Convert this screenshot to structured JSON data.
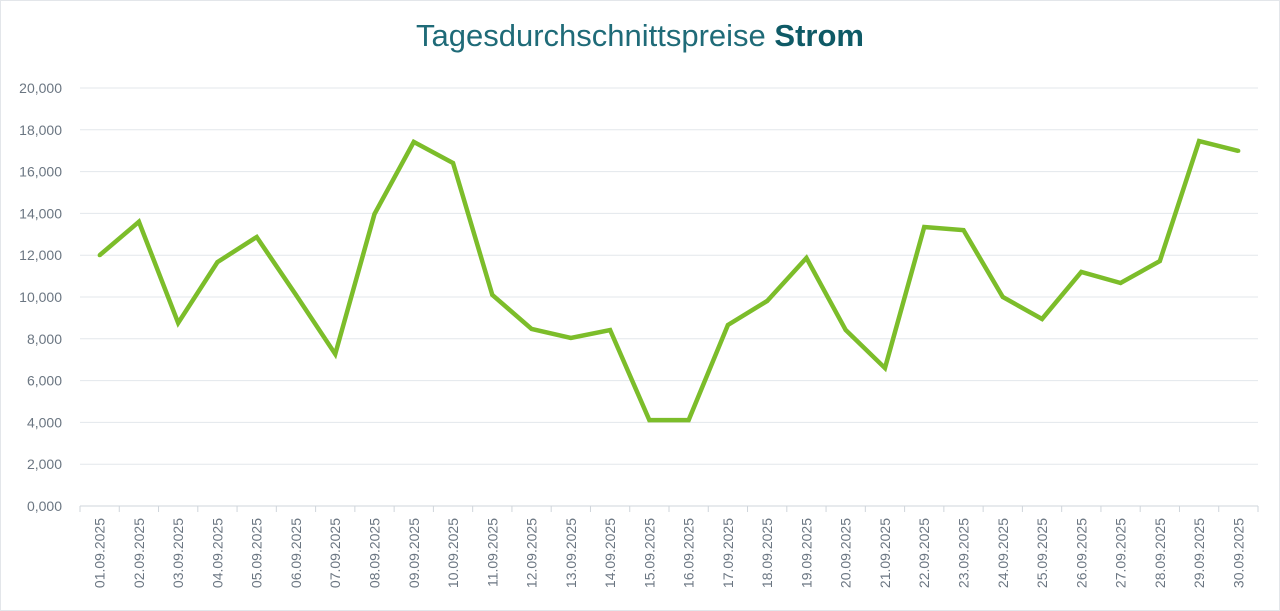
{
  "chart_data": {
    "type": "line",
    "title": "Tagesdurchschnittspreise",
    "title_bold": "Strom",
    "xlabel": "",
    "ylabel": "",
    "ylim": [
      0,
      20
    ],
    "yticks": [
      "0,000",
      "2,000",
      "4,000",
      "6,000",
      "8,000",
      "10,000",
      "12,000",
      "14,000",
      "16,000",
      "18,000",
      "20,000"
    ],
    "grid": "horizontal",
    "line_color": "#7cbd2a",
    "categories": [
      "01.09.2025",
      "02.09.2025",
      "03.09.2025",
      "04.09.2025",
      "05.09.2025",
      "06.09.2025",
      "07.09.2025",
      "08.09.2025",
      "09.09.2025",
      "10.09.2025",
      "11.09.2025",
      "12.09.2025",
      "13.09.2025",
      "14.09.2025",
      "15.09.2025",
      "16.09.2025",
      "17.09.2025",
      "18.09.2025",
      "19.09.2025",
      "20.09.2025",
      "21.09.2025",
      "22.09.2025",
      "23.09.2025",
      "24.09.2025",
      "25.09.2025",
      "26.09.2025",
      "27.09.2025",
      "28.09.2025",
      "29.09.2025",
      "30.09.2025"
    ],
    "values": [
      12.0,
      13.6,
      8.76,
      11.67,
      12.87,
      10.1,
      7.27,
      13.97,
      17.42,
      16.41,
      10.1,
      8.47,
      8.04,
      8.42,
      4.11,
      4.11,
      8.66,
      9.81,
      11.87,
      8.42,
      6.6,
      13.35,
      13.2,
      10.0,
      8.95,
      11.2,
      10.67,
      11.72,
      17.46,
      16.99
    ]
  }
}
